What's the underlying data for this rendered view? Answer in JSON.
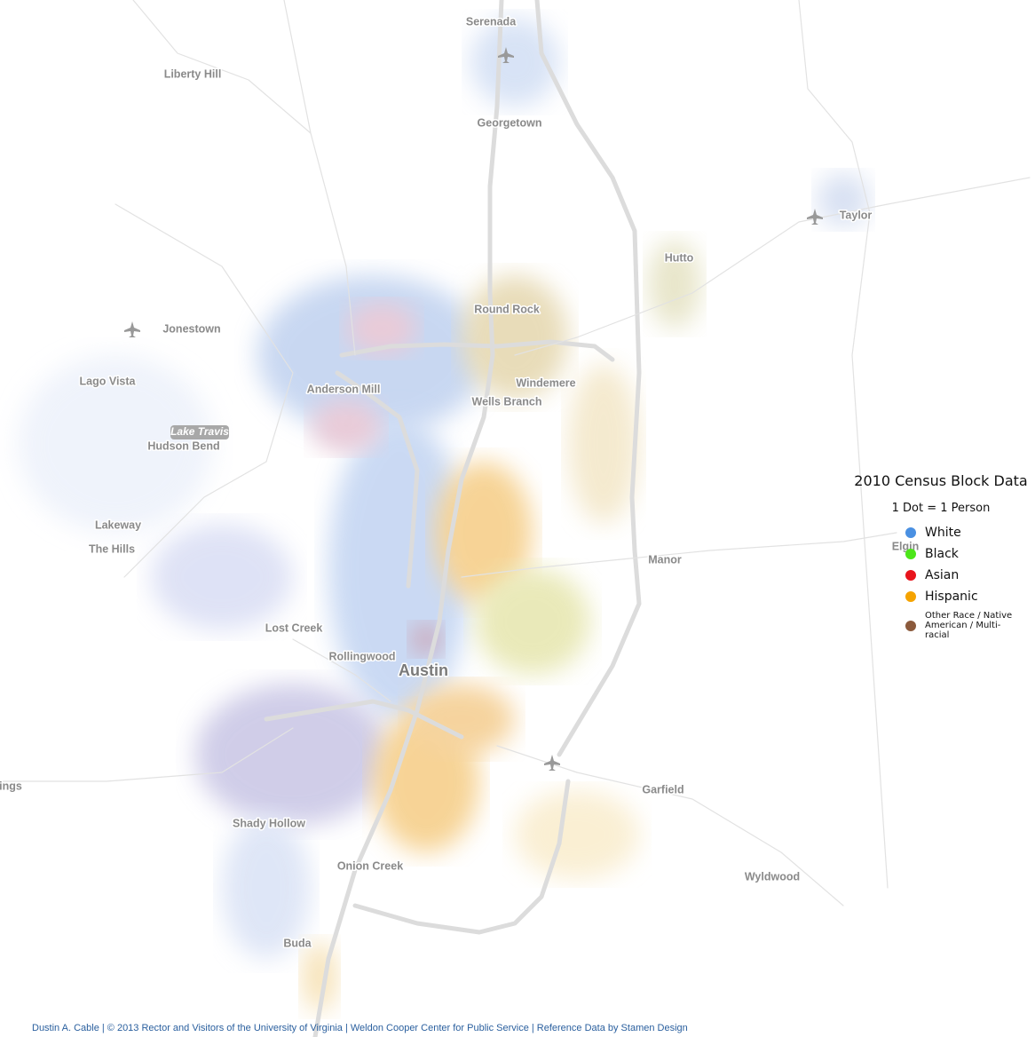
{
  "places": [
    "Serenada",
    "Liberty Hill",
    "Georgetown",
    "Taylor",
    "Hutto",
    "Round Rock",
    "Jonestown",
    "Lago Vista",
    "Anderson Mill",
    "Windemere",
    "Wells Branch",
    "Hudson Bend",
    "Lakeway",
    "The Hills",
    "Manor",
    "Elgin",
    "Lost Creek",
    "Rollingwood",
    "Austin",
    "ings",
    "Garfield",
    "Shady Hollow",
    "Onion Creek",
    "Wyldwood",
    "Buda"
  ],
  "water": [
    "Lake Travis"
  ],
  "legend": {
    "title": "2010 Census Block Data",
    "subtitle": "1 Dot = 1 Person",
    "items": [
      {
        "label": "White",
        "color": "#4a90e2"
      },
      {
        "label": "Black",
        "color": "#4ce619"
      },
      {
        "label": "Asian",
        "color": "#e8141c"
      },
      {
        "label": "Hispanic",
        "color": "#f5a300"
      },
      {
        "label": "Other Race / Native American / Multi-racial",
        "color": "#8b5a3c"
      }
    ]
  },
  "credit": "Dustin A. Cable | © 2013 Rector and Visitors of the University of Virginia | Weldon Cooper Center for Public Service | Reference Data by Stamen Design"
}
